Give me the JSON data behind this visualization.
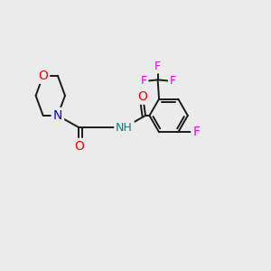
{
  "background_color": "#ebebeb",
  "bond_color": "#1a1a1a",
  "atom_colors": {
    "O": "#ff0000",
    "N": "#0000ee",
    "F": "#ee00ee",
    "NH": "#008080",
    "C": "#1a1a1a"
  },
  "bond_width": 1.4,
  "font_size": 9,
  "figsize": [
    3.0,
    3.0
  ],
  "dpi": 100
}
